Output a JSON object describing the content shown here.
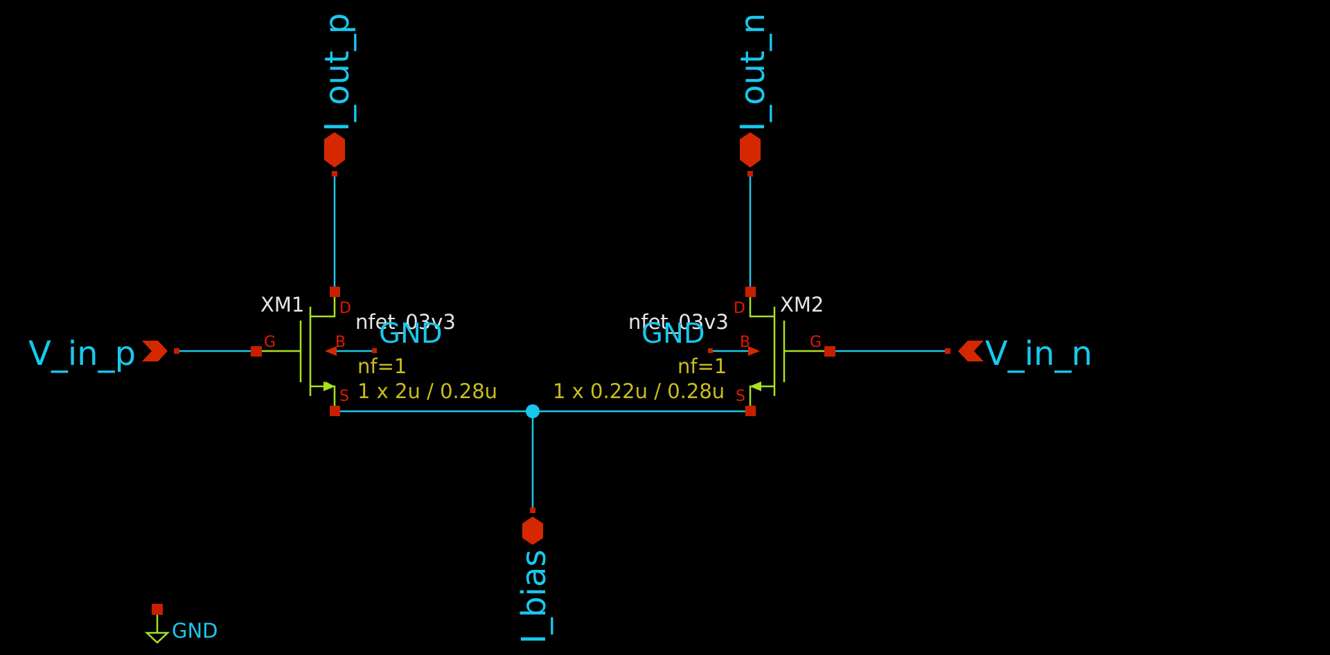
{
  "nets": {
    "i_out_p": "I_out_p",
    "i_out_n": "I_out_n",
    "i_bias": "I_bias",
    "v_in_p": "V_in_p",
    "v_in_n": "V_in_n",
    "gnd": "GND"
  },
  "transistors": [
    {
      "name": "XM1",
      "model": "nfet_03v3",
      "bulk": "GND",
      "nf": "nf=1",
      "size": "1 x 2u / 0.28u",
      "pins": {
        "d": "D",
        "g": "G",
        "s": "S",
        "b": "B"
      }
    },
    {
      "name": "XM2",
      "model": "nfet_03v3",
      "bulk": "GND",
      "nf": "nf=1",
      "size": "1 x 0.22u / 0.28u",
      "pins": {
        "d": "D",
        "g": "G",
        "s": "S",
        "b": "B"
      }
    }
  ],
  "ground_symbol": {
    "label": "GND"
  },
  "colors": {
    "background": "#000000",
    "wire": "#22c4e8",
    "device": "#a8e022",
    "pin": "#c81e00",
    "net_label": "#18c8ec",
    "instance_label": "#e6e6e6",
    "param_label": "#c8bd1e"
  }
}
